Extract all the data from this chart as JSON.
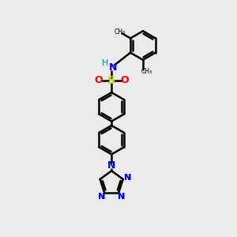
{
  "bg_color": "#ebebeb",
  "bond_color": "#000000",
  "bond_width": 1.8,
  "N_color": "#0000ff",
  "S_color": "#cccc00",
  "O_color": "#ff0000",
  "H_color": "#008080",
  "figsize": [
    3.0,
    3.0
  ],
  "dpi": 100,
  "xlim": [
    0,
    10
  ],
  "ylim": [
    0,
    10
  ]
}
